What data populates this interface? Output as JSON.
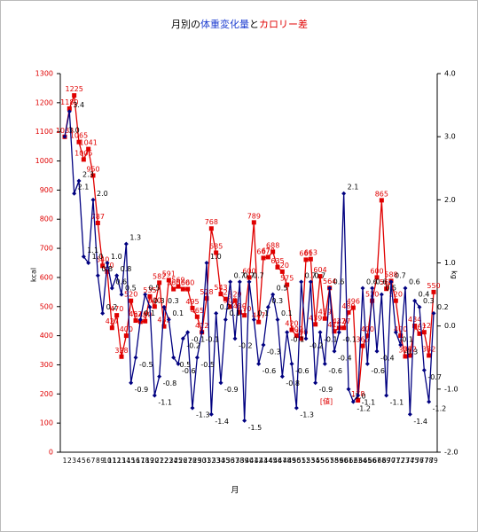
{
  "chart_data": {
    "type": "line",
    "title": [
      "月別の",
      "体重変化量",
      "と",
      "カロリー差"
    ],
    "title_colors": [
      "#000000",
      "#1f3fd0",
      "#000000",
      "#e00000"
    ],
    "x_label": "月",
    "y_label": "kcal",
    "y2_label": "kg",
    "annotation": "[値]",
    "categories": [
      1,
      2,
      3,
      4,
      5,
      6,
      7,
      8,
      9,
      10,
      11,
      12,
      13,
      14,
      15,
      16,
      17,
      18,
      19,
      20,
      21,
      22,
      23,
      24,
      25,
      26,
      27,
      28,
      29,
      30,
      31,
      32,
      33,
      34,
      35,
      36,
      37,
      38,
      39,
      40,
      41,
      42,
      43,
      44,
      45,
      46,
      47,
      48,
      49,
      50,
      51,
      52,
      53,
      54,
      55,
      56,
      57,
      58,
      59,
      60,
      61,
      62,
      63,
      64,
      65,
      66,
      67,
      68,
      69,
      70,
      71,
      72,
      73,
      74,
      75,
      76,
      77,
      78,
      79
    ],
    "ylim": [
      0,
      1300
    ],
    "yticks": [
      0,
      100,
      200,
      300,
      400,
      500,
      600,
      700,
      800,
      900,
      1000,
      1100,
      1200,
      1300
    ],
    "y2lim": [
      -2,
      4
    ],
    "y2ticks": [
      {
        "value": -2,
        "label": "-2.0"
      },
      {
        "value": -1,
        "label": "-1.0"
      },
      {
        "value": 0,
        "label": "0.0"
      },
      {
        "value": 1,
        "label": "1.0"
      },
      {
        "value": 2,
        "label": "2.0"
      },
      {
        "value": 3,
        "label": "3.0"
      },
      {
        "value": 4,
        "label": "4.0"
      }
    ],
    "series": [
      {
        "color": "#e00000",
        "axis": "y",
        "marker": "square",
        "values": [
          1083,
          1180,
          1225,
          1065,
          1005,
          1041,
          950,
          787,
          640,
          620,
          427,
          470,
          328,
          400,
          520,
          452,
          448,
          450,
          535,
          500,
          582,
          432,
          591,
          560,
          569,
          560,
          560,
          495,
          465,
          412,
          528,
          768,
          685,
          543,
          526,
          500,
          520,
          480,
          470,
          600,
          789,
          447,
          667,
          670,
          688,
          635,
          620,
          575,
          420,
          400,
          390,
          661,
          663,
          439,
          604,
          459,
          564,
          415,
          427,
          427,
          480,
          496,
          178,
          365,
          400,
          520,
          600,
          865,
          561,
          588,
          520,
          400,
          329,
          332,
          434,
          407,
          412,
          332,
          550
        ]
      },
      {
        "color": "#000080",
        "axis": "y2",
        "marker": "diamond",
        "values": [
          3.0,
          3.4,
          2.1,
          2.3,
          1.1,
          1.0,
          2.0,
          0.8,
          0.2,
          1.0,
          0.6,
          0.8,
          0.5,
          1.3,
          -0.9,
          -0.5,
          0.1,
          0.5,
          0.3,
          -1.1,
          -0.8,
          0.3,
          0.1,
          -0.5,
          -0.6,
          -0.2,
          -0.1,
          -1.3,
          -0.5,
          -0.1,
          1.0,
          -1.4,
          0.2,
          -0.9,
          0.1,
          0.7,
          -0.2,
          0.7,
          -1.5,
          0.7,
          0.1,
          -0.6,
          -0.3,
          0.3,
          0.5,
          0.1,
          -0.8,
          -0.1,
          -0.6,
          -1.3,
          0.7,
          -0.2,
          0.7,
          -0.9,
          -0.1,
          -0.6,
          0.6,
          -0.4,
          -0.1,
          2.1,
          -1.0,
          -1.2,
          -1.1,
          0.6,
          -0.6,
          0.6,
          -0.4,
          0.5,
          -1.1,
          0.7,
          -0.1,
          -0.3,
          0.6,
          -1.4,
          0.4,
          0.3,
          -0.7,
          -1.2,
          0.2
        ],
        "value_labels": [
          "3.0",
          "3.4",
          "2.1",
          "2.3",
          "1.1",
          "1.0",
          "2.0",
          "0.8",
          "0.2",
          "1.0",
          "0.6",
          "0.8",
          "0.5",
          "1.3",
          "-0.9",
          "-0.5",
          "0.1",
          "0.5",
          "0.3",
          "-1.1",
          "-0.8",
          "0.3",
          "0.1",
          "-0.5",
          "-0.6",
          "-0.2",
          "-0.1",
          "-1.3",
          "-0.5",
          "-0.1",
          "1.0",
          "-1.4",
          "0.2",
          "-0.9",
          "0.1",
          "0.7",
          "-0.2",
          "0.7",
          "-1.5",
          "0.7",
          "0.1",
          "-0.6",
          "-0.3",
          "0.3",
          "0.5",
          "0.1",
          "-0.8",
          "-0.1",
          "-0.6",
          "-1.3",
          "0.7",
          "-0.2",
          "0.7",
          "-0.9",
          "-0.1",
          "-0.6",
          "0.6",
          "-0.4",
          "-0.1",
          "2.1",
          "-1.0",
          "-1.2",
          "-1.1",
          "0.6",
          "-0.6",
          "0.6",
          "-0.4",
          "0.5",
          "-1.1",
          "0.7",
          "-0.1",
          "-0.3",
          "0.6",
          "-1.4",
          "0.4",
          "0.3",
          "-0.7",
          "-1.2",
          "0.2"
        ]
      }
    ]
  }
}
